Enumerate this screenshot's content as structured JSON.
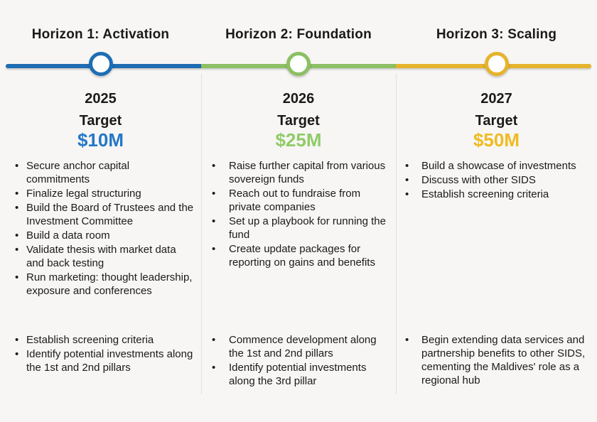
{
  "background_color": "#f7f6f4",
  "divider_color": "#e2e0dd",
  "columns": [
    {
      "header": "Horizon 1: Activation",
      "year": "2025",
      "target_label": "Target",
      "target_value": "$10M",
      "accent_color": "#1f6db3",
      "value_color": "#2277c8",
      "bullets_top": [
        "Secure anchor capital commitments",
        "Finalize legal structuring",
        "Build the Board of Trustees and the Investment Committee",
        "Build a data room",
        "Validate thesis with market data and back testing",
        "Run marketing: thought leadership, exposure and conferences"
      ],
      "bullets_bottom": [
        "Establish screening criteria",
        "Identify potential investments along the 1st and 2nd pillars"
      ]
    },
    {
      "header": "Horizon 2: Foundation",
      "year": "2026",
      "target_label": "Target",
      "target_value": "$25M",
      "accent_color": "#8cc063",
      "value_color": "#90cb68",
      "bullets_top": [
        "Raise further capital from various sovereign funds",
        "Reach out to fundraise from private companies",
        "Set up a playbook for running the fund",
        "Create update packages for reporting on gains and benefits"
      ],
      "bullets_bottom": [
        "Commence development along the 1st and 2nd pillars",
        "Identify potential investments along the 3rd pillar"
      ]
    },
    {
      "header": "Horizon 3: Scaling",
      "year": "2027",
      "target_label": "Target",
      "target_value": "$50M",
      "accent_color": "#e6b32d",
      "value_color": "#efbb22",
      "bullets_top": [
        "Build a showcase of investments",
        "Discuss with other SIDS",
        "Establish screening criteria"
      ],
      "bullets_bottom": [
        "Begin extending data services and partnership benefits to other SIDS, cementing the Maldives' role as a regional hub"
      ]
    }
  ]
}
